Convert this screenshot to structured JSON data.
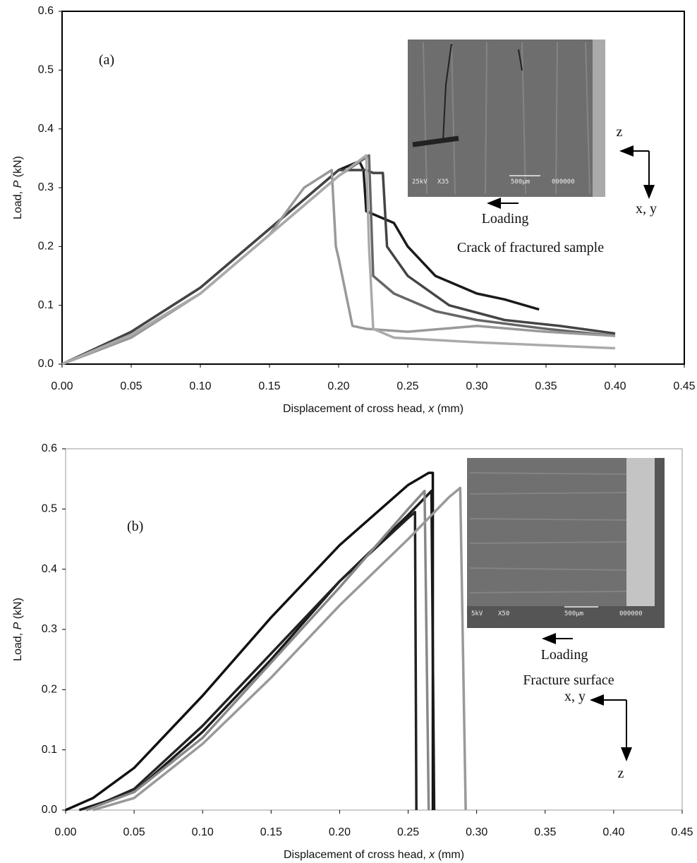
{
  "chart_data": [
    {
      "type": "line",
      "xlabel": [
        "Displacement of cross head, ",
        "x",
        " (mm)"
      ],
      "ylabel": [
        "Load, ",
        "P",
        " (kN)"
      ],
      "xlim": [
        0,
        0.45
      ],
      "ylim": [
        0,
        0.6
      ],
      "xticks": [
        {
          "value": 0,
          "label": "0.00"
        },
        {
          "value": 0.05,
          "label": "0.05"
        },
        {
          "value": 0.1,
          "label": "0.10"
        },
        {
          "value": 0.15,
          "label": "0.15"
        },
        {
          "value": 0.2,
          "label": "0.20"
        },
        {
          "value": 0.25,
          "label": "0.25"
        },
        {
          "value": 0.3,
          "label": "0.30"
        },
        {
          "value": 0.35,
          "label": "0.35"
        },
        {
          "value": 0.4,
          "label": "0.40"
        },
        {
          "value": 0.45,
          "label": "0.45"
        }
      ],
      "yticks": [
        {
          "value": 0,
          "label": "0.0"
        },
        {
          "value": 0.1,
          "label": "0.1"
        },
        {
          "value": 0.2,
          "label": "0.2"
        },
        {
          "value": 0.3,
          "label": "0.3"
        },
        {
          "value": 0.4,
          "label": "0.4"
        },
        {
          "value": 0.5,
          "label": "0.5"
        },
        {
          "value": 0.6,
          "label": "0.6"
        }
      ],
      "frame_color": "#000000",
      "panel_label": "(a)",
      "loading": "Loading",
      "caption": "Crack of fractured sample",
      "axis_z": "z",
      "axis_xy": "x, y",
      "inset_labels": [
        "25kV",
        "X35",
        "500μm",
        "000000"
      ],
      "series": [
        {
          "color": "#1a1a1a",
          "x": [
            0,
            0.02,
            0.05,
            0.1,
            0.15,
            0.2,
            0.215,
            0.218,
            0.22,
            0.24,
            0.25,
            0.27,
            0.3,
            0.32,
            0.345
          ],
          "values": [
            0,
            0.02,
            0.055,
            0.13,
            0.23,
            0.33,
            0.345,
            0.33,
            0.26,
            0.24,
            0.2,
            0.15,
            0.12,
            0.11,
            0.093
          ]
        },
        {
          "color": "#444444",
          "x": [
            0,
            0.05,
            0.1,
            0.15,
            0.2,
            0.22,
            0.225,
            0.232,
            0.235,
            0.25,
            0.28,
            0.32,
            0.36,
            0.4
          ],
          "values": [
            0,
            0.055,
            0.13,
            0.23,
            0.33,
            0.33,
            0.325,
            0.325,
            0.2,
            0.15,
            0.1,
            0.075,
            0.065,
            0.052
          ]
        },
        {
          "color": "#666666",
          "x": [
            0,
            0.05,
            0.1,
            0.15,
            0.2,
            0.222,
            0.225,
            0.24,
            0.27,
            0.3,
            0.35,
            0.4
          ],
          "values": [
            0,
            0.05,
            0.12,
            0.22,
            0.32,
            0.355,
            0.15,
            0.12,
            0.09,
            0.075,
            0.06,
            0.048
          ]
        },
        {
          "color": "#999999",
          "x": [
            0,
            0.05,
            0.1,
            0.15,
            0.175,
            0.195,
            0.198,
            0.2,
            0.21,
            0.22,
            0.25,
            0.3,
            0.35,
            0.4
          ],
          "values": [
            0,
            0.045,
            0.12,
            0.22,
            0.3,
            0.33,
            0.2,
            0.18,
            0.065,
            0.06,
            0.055,
            0.065,
            0.055,
            0.048
          ]
        },
        {
          "color": "#aaaaaa",
          "x": [
            0,
            0.05,
            0.1,
            0.15,
            0.2,
            0.22,
            0.222,
            0.225,
            0.24,
            0.3,
            0.35,
            0.4
          ],
          "values": [
            0,
            0.05,
            0.12,
            0.22,
            0.32,
            0.355,
            0.2,
            0.06,
            0.045,
            0.037,
            0.032,
            0.027
          ]
        }
      ]
    },
    {
      "type": "line",
      "xlabel": [
        "Displacement of cross head, ",
        "x",
        " (mm)"
      ],
      "ylabel": [
        "Load, ",
        "P",
        " (kN)"
      ],
      "xlim": [
        0,
        0.45
      ],
      "ylim": [
        0,
        0.6
      ],
      "xticks": [
        {
          "value": 0,
          "label": "0.00"
        },
        {
          "value": 0.05,
          "label": "0.05"
        },
        {
          "value": 0.1,
          "label": "0.10"
        },
        {
          "value": 0.15,
          "label": "0.15"
        },
        {
          "value": 0.2,
          "label": "0.20"
        },
        {
          "value": 0.25,
          "label": "0.25"
        },
        {
          "value": 0.3,
          "label": "0.30"
        },
        {
          "value": 0.35,
          "label": "0.35"
        },
        {
          "value": 0.4,
          "label": "0.40"
        },
        {
          "value": 0.45,
          "label": "0.45"
        }
      ],
      "yticks": [
        {
          "value": 0,
          "label": "0.0"
        },
        {
          "value": 0.1,
          "label": "0.1"
        },
        {
          "value": 0.2,
          "label": "0.2"
        },
        {
          "value": 0.3,
          "label": "0.3"
        },
        {
          "value": 0.4,
          "label": "0.4"
        },
        {
          "value": 0.5,
          "label": "0.5"
        },
        {
          "value": 0.6,
          "label": "0.6"
        }
      ],
      "frame_color": "#999999",
      "panel_label": "(b)",
      "loading": "Loading",
      "caption": "Fracture surface",
      "axis_z": "z",
      "axis_xy": "x, y",
      "inset_labels": [
        "5kV",
        "X50",
        "500μm",
        "000000"
      ],
      "series": [
        {
          "color": "#111111",
          "x": [
            0,
            0.02,
            0.05,
            0.1,
            0.15,
            0.2,
            0.25,
            0.265,
            0.268,
            0.268
          ],
          "values": [
            0,
            0.02,
            0.07,
            0.19,
            0.32,
            0.44,
            0.54,
            0.56,
            0.56,
            0
          ]
        },
        {
          "color": "#1a1a1a",
          "x": [
            0.01,
            0.05,
            0.1,
            0.15,
            0.2,
            0.25,
            0.267,
            0.269
          ],
          "values": [
            0,
            0.03,
            0.13,
            0.25,
            0.38,
            0.49,
            0.53,
            0
          ]
        },
        {
          "color": "#222222",
          "x": [
            0.015,
            0.05,
            0.1,
            0.15,
            0.2,
            0.25,
            0.255,
            0.256
          ],
          "values": [
            0,
            0.035,
            0.14,
            0.26,
            0.38,
            0.485,
            0.495,
            0
          ]
        },
        {
          "color": "#888888",
          "x": [
            0.015,
            0.05,
            0.1,
            0.15,
            0.2,
            0.25,
            0.262,
            0.265
          ],
          "values": [
            0,
            0.03,
            0.12,
            0.245,
            0.37,
            0.5,
            0.53,
            0
          ]
        },
        {
          "color": "#999999",
          "x": [
            0.02,
            0.05,
            0.1,
            0.15,
            0.2,
            0.25,
            0.28,
            0.288,
            0.292
          ],
          "values": [
            0,
            0.02,
            0.11,
            0.22,
            0.34,
            0.45,
            0.52,
            0.535,
            0
          ]
        }
      ]
    }
  ]
}
